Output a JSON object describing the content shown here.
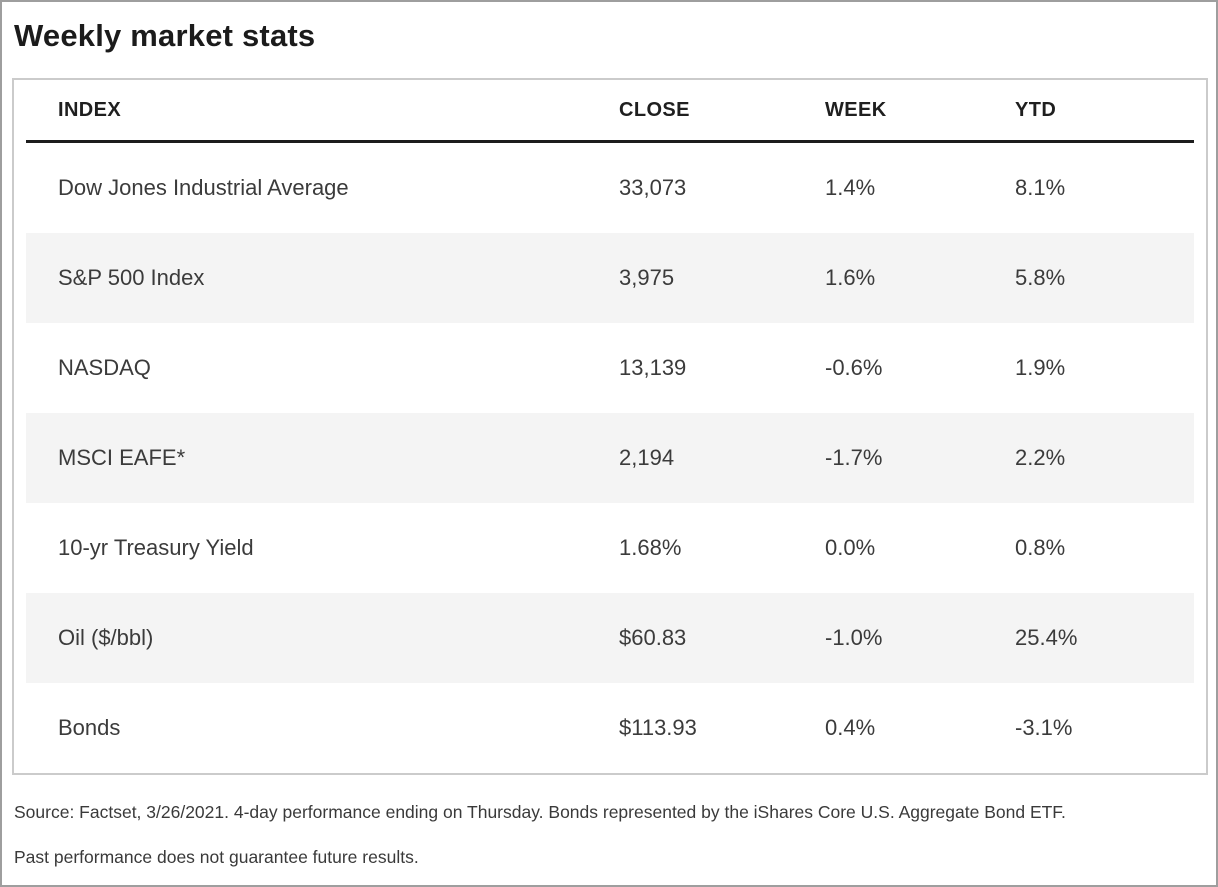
{
  "page": {
    "title": "Weekly market stats",
    "source_line1": "Source: Factset, 3/26/2021. 4-day performance ending on Thursday. Bonds represented by the iShares Core U.S. Aggregate Bond ETF.",
    "source_line2": "Past performance does not guarantee future results."
  },
  "table": {
    "columns": [
      "INDEX",
      "CLOSE",
      "WEEK",
      "YTD"
    ],
    "rows": [
      {
        "index": "Dow Jones Industrial Average",
        "close": "33,073",
        "week": "1.4%",
        "ytd": "8.1%"
      },
      {
        "index": "S&P 500 Index",
        "close": "3,975",
        "week": "1.6%",
        "ytd": "5.8%"
      },
      {
        "index": "NASDAQ",
        "close": "13,139",
        "week": "-0.6%",
        "ytd": "1.9%"
      },
      {
        "index": "MSCI EAFE*",
        "close": "2,194",
        "week": "-1.7%",
        "ytd": "2.2%"
      },
      {
        "index": "10-yr Treasury Yield",
        "close": "1.68%",
        "week": "0.0%",
        "ytd": "0.8%"
      },
      {
        "index": "Oil ($/bbl)",
        "close": "$60.83",
        "week": "-1.0%",
        "ytd": "25.4%"
      },
      {
        "index": "Bonds",
        "close": "$113.93",
        "week": "0.4%",
        "ytd": "-3.1%"
      }
    ]
  },
  "chart_data": {
    "type": "table",
    "title": "Weekly market stats",
    "columns": [
      "INDEX",
      "CLOSE",
      "WEEK",
      "YTD"
    ],
    "rows": [
      [
        "Dow Jones Industrial Average",
        "33,073",
        "1.4%",
        "8.1%"
      ],
      [
        "S&P 500 Index",
        "3,975",
        "1.6%",
        "5.8%"
      ],
      [
        "NASDAQ",
        "13,139",
        "-0.6%",
        "1.9%"
      ],
      [
        "MSCI EAFE*",
        "2,194",
        "-1.7%",
        "2.2%"
      ],
      [
        "10-yr Treasury Yield",
        "1.68%",
        "0.0%",
        "0.8%"
      ],
      [
        "Oil ($/bbl)",
        "$60.83",
        "-1.0%",
        "25.4%"
      ],
      [
        "Bonds",
        "$113.93",
        "0.4%",
        "-3.1%"
      ]
    ],
    "notes": [
      "Source: Factset, 3/26/2021. 4-day performance ending on Thursday. Bonds represented by the iShares Core U.S. Aggregate Bond ETF.",
      "Past performance does not guarantee future results."
    ]
  },
  "colors": {
    "stripe_background": "#f4f4f4",
    "table_border": "#cbcbcb",
    "header_rule": "#1d1d1d",
    "title_text": "#1b1b1b",
    "body_text": "#3b3b3b",
    "outer_frame": "#9e9e9e"
  }
}
